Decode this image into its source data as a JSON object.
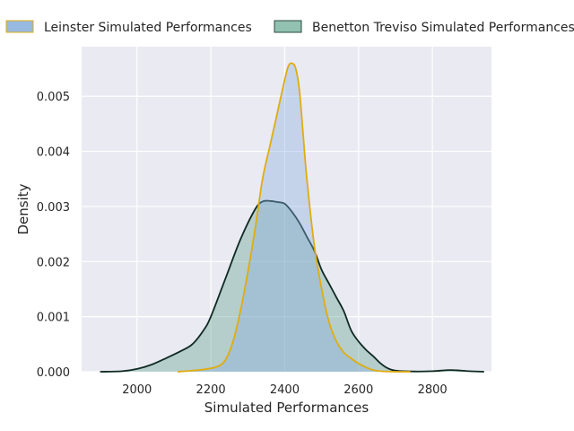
{
  "chart_data": {
    "type": "area",
    "title": "",
    "xlabel": "Simulated Performances",
    "ylabel": "Density",
    "xlim": [
      1850,
      2960
    ],
    "ylim": [
      0,
      0.0059
    ],
    "xticks": [
      2000,
      2200,
      2400,
      2600,
      2800
    ],
    "xtick_labels": [
      "2000",
      "2200",
      "2400",
      "2600",
      "2800"
    ],
    "yticks": [
      0,
      0.001,
      0.002,
      0.003,
      0.004,
      0.005
    ],
    "ytick_labels": [
      "0.000",
      "0.001",
      "0.002",
      "0.003",
      "0.004",
      "0.005"
    ],
    "grid": true,
    "legend_position": "top",
    "series": [
      {
        "name": "Benetton Treviso Simulated Performances",
        "fill_color": "#5f9e8b",
        "line_color": "#0f2a22",
        "x": [
          1900,
          1960,
          2000,
          2040,
          2080,
          2120,
          2150,
          2180,
          2200,
          2240,
          2280,
          2320,
          2340,
          2360,
          2380,
          2400,
          2420,
          2440,
          2460,
          2480,
          2500,
          2520,
          2540,
          2560,
          2580,
          2600,
          2620,
          2640,
          2660,
          2680,
          2700,
          2750,
          2800,
          2850,
          2900,
          2940
        ],
        "y": [
          0,
          1e-05,
          5e-05,
          0.00013,
          0.00025,
          0.00038,
          0.0005,
          0.00075,
          0.001,
          0.0017,
          0.0024,
          0.00295,
          0.00309,
          0.0031,
          0.00308,
          0.00305,
          0.0029,
          0.0027,
          0.00245,
          0.0022,
          0.00185,
          0.0016,
          0.00135,
          0.0011,
          0.00075,
          0.00055,
          0.0004,
          0.00028,
          0.00015,
          6e-05,
          2e-05,
          5e-06,
          1e-05,
          3e-05,
          1e-05,
          0
        ]
      },
      {
        "name": "Leinster Simulated Performances",
        "fill_color": "#86aedc",
        "line_color": "#e0ac10",
        "x": [
          2110,
          2150,
          2190,
          2220,
          2240,
          2260,
          2280,
          2300,
          2320,
          2340,
          2360,
          2380,
          2400,
          2410,
          2420,
          2430,
          2440,
          2450,
          2460,
          2480,
          2500,
          2520,
          2540,
          2560,
          2580,
          2600,
          2620,
          2640,
          2660,
          2700,
          2740
        ],
        "y": [
          0,
          2e-05,
          5e-05,
          0.0001,
          0.00022,
          0.00055,
          0.0011,
          0.0018,
          0.0026,
          0.0035,
          0.0041,
          0.0047,
          0.0053,
          0.00555,
          0.0056,
          0.0055,
          0.0051,
          0.0043,
          0.0035,
          0.0023,
          0.0015,
          0.0009,
          0.00055,
          0.00035,
          0.00024,
          0.00015,
          8e-05,
          3e-05,
          1e-05,
          0,
          0
        ]
      }
    ],
    "legend": [
      {
        "label": "Leinster Simulated Performances",
        "fill": "#86aedc",
        "stroke": "#e0ac10"
      },
      {
        "label": "Benetton Treviso Simulated Performances",
        "fill": "#7fb5a3",
        "stroke": "#2c4a40"
      }
    ]
  }
}
